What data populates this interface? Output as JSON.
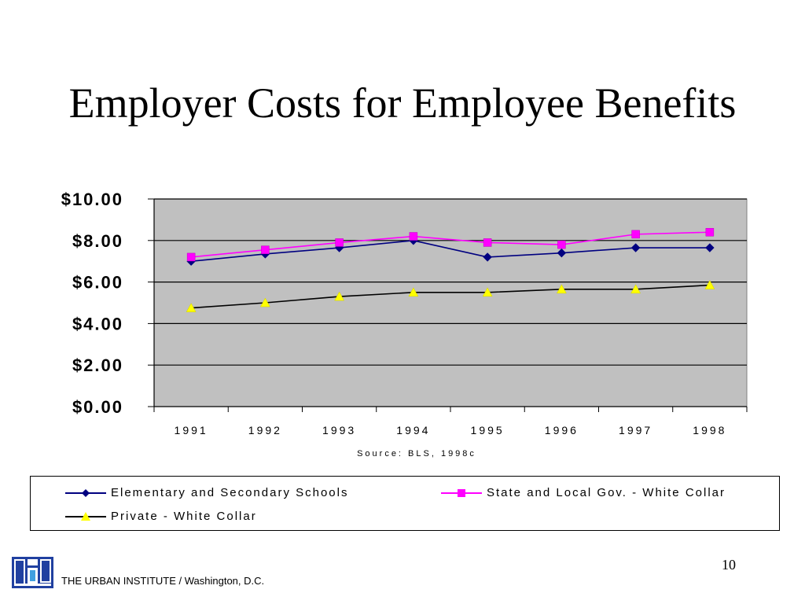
{
  "slide": {
    "title": "Employer Costs for Employee Benefits",
    "page_number": "10",
    "footer": "THE URBAN INSTITUTE / Washington, D.C.",
    "logo_icon": "urban-institute-logo-icon"
  },
  "chart_data": {
    "type": "line",
    "title": "Employer Costs for Employee Benefits",
    "xlabel": "Source: BLS, 1998c",
    "ylabel": "",
    "categories": [
      "1991",
      "1992",
      "1993",
      "1994",
      "1995",
      "1996",
      "1997",
      "1998"
    ],
    "ylim": [
      0,
      10
    ],
    "yticks": [
      0,
      2,
      4,
      6,
      8,
      10
    ],
    "ytick_labels": [
      "$0.00",
      "$2.00",
      "$4.00",
      "$6.00",
      "$8.00",
      "$10.00"
    ],
    "grid": true,
    "plot_background": "#c0c0c0",
    "legend_position": "bottom",
    "series": [
      {
        "name": "Elementary and Secondary Schools",
        "color": "#000080",
        "marker": "diamond",
        "values": [
          7.0,
          7.35,
          7.65,
          8.0,
          7.2,
          7.4,
          7.65,
          7.65
        ]
      },
      {
        "name": "State and Local Gov. - White Collar",
        "color": "#ff00ff",
        "marker": "square",
        "values": [
          7.2,
          7.55,
          7.9,
          8.2,
          7.9,
          7.8,
          8.3,
          8.4
        ]
      },
      {
        "name": "Private - White Collar",
        "color": "#ffff00",
        "line_color": "#000000",
        "marker": "triangle",
        "values": [
          4.75,
          5.0,
          5.3,
          5.5,
          5.5,
          5.65,
          5.65,
          5.85
        ]
      }
    ]
  }
}
